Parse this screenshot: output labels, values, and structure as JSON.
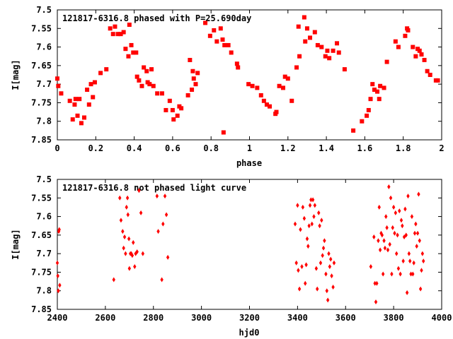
{
  "chart_data": [
    {
      "type": "scatter",
      "title": "121817-6316.8 phased with P=25.690day",
      "xlabel": "phase",
      "ylabel": "I[mag]",
      "xlim": [
        0,
        2
      ],
      "ylim": [
        7.85,
        7.5
      ],
      "y_inverted": true,
      "x_ticks": [
        0,
        0.2,
        0.4,
        0.6,
        0.8,
        1,
        1.2,
        1.4,
        1.6,
        1.8,
        2
      ],
      "x_tick_labels": [
        "0",
        "0.2",
        "0.4",
        "0.6",
        "0.8",
        "1",
        "1.2",
        "1.4",
        "1.6",
        "1.8",
        "2"
      ],
      "y_ticks": [
        7.5,
        7.55,
        7.6,
        7.65,
        7.7,
        7.75,
        7.8,
        7.85
      ],
      "y_tick_labels": [
        "7.5",
        "7.55",
        "7.6",
        "7.65",
        "7.7",
        "7.75",
        "7.8",
        "7.85"
      ],
      "marker_color": "#ff0000",
      "marker": "square",
      "points": [
        [
          0.0,
          7.685
        ],
        [
          0.005,
          7.705
        ],
        [
          0.02,
          7.725
        ],
        [
          0.065,
          7.745
        ],
        [
          0.08,
          7.795
        ],
        [
          0.09,
          7.755
        ],
        [
          0.095,
          7.74
        ],
        [
          0.105,
          7.785
        ],
        [
          0.115,
          7.74
        ],
        [
          0.125,
          7.805
        ],
        [
          0.14,
          7.79
        ],
        [
          0.155,
          7.715
        ],
        [
          0.165,
          7.755
        ],
        [
          0.175,
          7.7
        ],
        [
          0.185,
          7.735
        ],
        [
          0.195,
          7.695
        ],
        [
          0.225,
          7.67
        ],
        [
          0.255,
          7.66
        ],
        [
          0.275,
          7.55
        ],
        [
          0.29,
          7.565
        ],
        [
          0.3,
          7.545
        ],
        [
          0.315,
          7.565
        ],
        [
          0.33,
          7.565
        ],
        [
          0.345,
          7.56
        ],
        [
          0.355,
          7.605
        ],
        [
          0.37,
          7.625
        ],
        [
          0.375,
          7.54
        ],
        [
          0.385,
          7.595
        ],
        [
          0.395,
          7.615
        ],
        [
          0.41,
          7.615
        ],
        [
          0.415,
          7.68
        ],
        [
          0.425,
          7.69
        ],
        [
          0.44,
          7.705
        ],
        [
          0.45,
          7.655
        ],
        [
          0.465,
          7.665
        ],
        [
          0.47,
          7.695
        ],
        [
          0.48,
          7.7
        ],
        [
          0.49,
          7.66
        ],
        [
          0.5,
          7.705
        ],
        [
          0.52,
          7.725
        ],
        [
          0.545,
          7.725
        ],
        [
          0.565,
          7.77
        ],
        [
          0.585,
          7.745
        ],
        [
          0.6,
          7.77
        ],
        [
          0.605,
          7.795
        ],
        [
          0.625,
          7.785
        ],
        [
          0.635,
          7.76
        ],
        [
          0.645,
          7.765
        ],
        [
          0.68,
          7.73
        ],
        [
          0.69,
          7.635
        ],
        [
          0.7,
          7.715
        ],
        [
          0.705,
          7.665
        ],
        [
          0.71,
          7.685
        ],
        [
          0.72,
          7.7
        ],
        [
          0.73,
          7.67
        ],
        [
          0.77,
          7.535
        ],
        [
          0.795,
          7.57
        ],
        [
          0.815,
          7.555
        ],
        [
          0.83,
          7.585
        ],
        [
          0.85,
          7.55
        ],
        [
          0.86,
          7.58
        ],
        [
          0.865,
          7.83
        ],
        [
          0.87,
          7.595
        ],
        [
          0.89,
          7.595
        ],
        [
          0.905,
          7.615
        ],
        [
          0.935,
          7.645
        ],
        [
          0.94,
          7.655
        ],
        [
          0.995,
          7.7
        ],
        [
          1.015,
          7.705
        ],
        [
          1.04,
          7.71
        ],
        [
          1.06,
          7.73
        ],
        [
          1.075,
          7.745
        ],
        [
          1.09,
          7.755
        ],
        [
          1.105,
          7.76
        ],
        [
          1.135,
          7.78
        ],
        [
          1.14,
          7.775
        ],
        [
          1.155,
          7.705
        ],
        [
          1.175,
          7.71
        ],
        [
          1.185,
          7.68
        ],
        [
          1.2,
          7.685
        ],
        [
          1.22,
          7.745
        ],
        [
          1.245,
          7.655
        ],
        [
          1.255,
          7.545
        ],
        [
          1.26,
          7.625
        ],
        [
          1.285,
          7.52
        ],
        [
          1.29,
          7.585
        ],
        [
          1.3,
          7.55
        ],
        [
          1.315,
          7.575
        ],
        [
          1.34,
          7.56
        ],
        [
          1.355,
          7.595
        ],
        [
          1.375,
          7.6
        ],
        [
          1.395,
          7.625
        ],
        [
          1.405,
          7.61
        ],
        [
          1.415,
          7.63
        ],
        [
          1.435,
          7.61
        ],
        [
          1.455,
          7.59
        ],
        [
          1.465,
          7.615
        ],
        [
          1.495,
          7.66
        ],
        [
          1.54,
          7.825
        ],
        [
          1.585,
          7.8
        ],
        [
          1.61,
          7.785
        ],
        [
          1.62,
          7.77
        ],
        [
          1.63,
          7.74
        ],
        [
          1.64,
          7.7
        ],
        [
          1.65,
          7.715
        ],
        [
          1.665,
          7.72
        ],
        [
          1.675,
          7.74
        ],
        [
          1.68,
          7.705
        ],
        [
          1.7,
          7.71
        ],
        [
          1.715,
          7.64
        ],
        [
          1.76,
          7.585
        ],
        [
          1.775,
          7.6
        ],
        [
          1.81,
          7.57
        ],
        [
          1.82,
          7.55
        ],
        [
          1.825,
          7.555
        ],
        [
          1.85,
          7.6
        ],
        [
          1.865,
          7.625
        ],
        [
          1.875,
          7.605
        ],
        [
          1.885,
          7.61
        ],
        [
          1.895,
          7.62
        ],
        [
          1.91,
          7.635
        ],
        [
          1.925,
          7.665
        ],
        [
          1.94,
          7.675
        ],
        [
          1.97,
          7.69
        ],
        [
          1.98,
          7.69
        ]
      ]
    },
    {
      "type": "scatter",
      "title": "121817-6316.8 not phased light curve",
      "xlabel": "hjd0",
      "ylabel": "I[mag]",
      "xlim": [
        2400,
        4000
      ],
      "ylim": [
        7.85,
        7.5
      ],
      "y_inverted": true,
      "x_ticks": [
        2400,
        2600,
        2800,
        3000,
        3200,
        3400,
        3600,
        3800,
        4000
      ],
      "x_tick_labels": [
        "2400",
        "2600",
        "2800",
        "3000",
        "3200",
        "3400",
        "3600",
        "3800",
        "4000"
      ],
      "y_ticks": [
        7.5,
        7.55,
        7.6,
        7.65,
        7.7,
        7.75,
        7.8,
        7.85
      ],
      "y_tick_labels": [
        "7.5",
        "7.55",
        "7.6",
        "7.65",
        "7.7",
        "7.75",
        "7.8",
        "7.85"
      ],
      "marker_color": "#ff0000",
      "marker": "diamond",
      "points": [
        [
          2400,
          7.725
        ],
        [
          2402,
          7.76
        ],
        [
          2404,
          7.8
        ],
        [
          2406,
          7.64
        ],
        [
          2408,
          7.635
        ],
        [
          2410,
          7.785
        ],
        [
          2635,
          7.77
        ],
        [
          2660,
          7.55
        ],
        [
          2665,
          7.61
        ],
        [
          2672,
          7.64
        ],
        [
          2676,
          7.685
        ],
        [
          2680,
          7.655
        ],
        [
          2684,
          7.7
        ],
        [
          2688,
          7.575
        ],
        [
          2692,
          7.55
        ],
        [
          2694,
          7.595
        ],
        [
          2698,
          7.66
        ],
        [
          2700,
          7.74
        ],
        [
          2704,
          7.7
        ],
        [
          2708,
          7.7
        ],
        [
          2712,
          7.705
        ],
        [
          2716,
          7.67
        ],
        [
          2722,
          7.735
        ],
        [
          2726,
          7.7
        ],
        [
          2732,
          7.695
        ],
        [
          2740,
          7.53
        ],
        [
          2748,
          7.59
        ],
        [
          2756,
          7.7
        ],
        [
          2815,
          7.545
        ],
        [
          2820,
          7.64
        ],
        [
          2835,
          7.77
        ],
        [
          2840,
          7.62
        ],
        [
          2848,
          7.545
        ],
        [
          2854,
          7.595
        ],
        [
          2860,
          7.71
        ],
        [
          3390,
          7.62
        ],
        [
          3395,
          7.725
        ],
        [
          3400,
          7.57
        ],
        [
          3403,
          7.745
        ],
        [
          3408,
          7.795
        ],
        [
          3412,
          7.635
        ],
        [
          3418,
          7.735
        ],
        [
          3422,
          7.575
        ],
        [
          3428,
          7.605
        ],
        [
          3432,
          7.78
        ],
        [
          3436,
          7.73
        ],
        [
          3440,
          7.66
        ],
        [
          3444,
          7.68
        ],
        [
          3448,
          7.625
        ],
        [
          3452,
          7.57
        ],
        [
          3456,
          7.555
        ],
        [
          3460,
          7.62
        ],
        [
          3464,
          7.555
        ],
        [
          3468,
          7.6
        ],
        [
          3472,
          7.57
        ],
        [
          3478,
          7.74
        ],
        [
          3482,
          7.795
        ],
        [
          3488,
          7.59
        ],
        [
          3492,
          7.625
        ],
        [
          3496,
          7.725
        ],
        [
          3500,
          7.61
        ],
        [
          3504,
          7.705
        ],
        [
          3508,
          7.685
        ],
        [
          3512,
          7.665
        ],
        [
          3518,
          7.755
        ],
        [
          3522,
          7.8
        ],
        [
          3526,
          7.825
        ],
        [
          3530,
          7.7
        ],
        [
          3534,
          7.735
        ],
        [
          3538,
          7.715
        ],
        [
          3542,
          7.76
        ],
        [
          3548,
          7.79
        ],
        [
          3552,
          7.725
        ],
        [
          3705,
          7.735
        ],
        [
          3718,
          7.655
        ],
        [
          3722,
          7.78
        ],
        [
          3726,
          7.83
        ],
        [
          3730,
          7.78
        ],
        [
          3736,
          7.665
        ],
        [
          3740,
          7.575
        ],
        [
          3744,
          7.69
        ],
        [
          3748,
          7.645
        ],
        [
          3752,
          7.65
        ],
        [
          3756,
          7.755
        ],
        [
          3760,
          7.665
        ],
        [
          3764,
          7.685
        ],
        [
          3768,
          7.6
        ],
        [
          3772,
          7.63
        ],
        [
          3776,
          7.69
        ],
        [
          3780,
          7.52
        ],
        [
          3784,
          7.675
        ],
        [
          3788,
          7.55
        ],
        [
          3792,
          7.755
        ],
        [
          3796,
          7.63
        ],
        [
          3800,
          7.575
        ],
        [
          3804,
          7.645
        ],
        [
          3808,
          7.59
        ],
        [
          3812,
          7.7
        ],
        [
          3816,
          7.65
        ],
        [
          3820,
          7.74
        ],
        [
          3824,
          7.585
        ],
        [
          3828,
          7.755
        ],
        [
          3832,
          7.61
        ],
        [
          3836,
          7.625
        ],
        [
          3840,
          7.72
        ],
        [
          3844,
          7.655
        ],
        [
          3848,
          7.58
        ],
        [
          3852,
          7.65
        ],
        [
          3856,
          7.805
        ],
        [
          3860,
          7.545
        ],
        [
          3864,
          7.7
        ],
        [
          3868,
          7.72
        ],
        [
          3872,
          7.755
        ],
        [
          3876,
          7.6
        ],
        [
          3880,
          7.755
        ],
        [
          3884,
          7.725
        ],
        [
          3888,
          7.645
        ],
        [
          3892,
          7.62
        ],
        [
          3896,
          7.68
        ],
        [
          3900,
          7.645
        ],
        [
          3904,
          7.54
        ],
        [
          3908,
          7.665
        ],
        [
          3912,
          7.795
        ],
        [
          3916,
          7.745
        ],
        [
          3920,
          7.7
        ],
        [
          3924,
          7.72
        ]
      ]
    }
  ]
}
